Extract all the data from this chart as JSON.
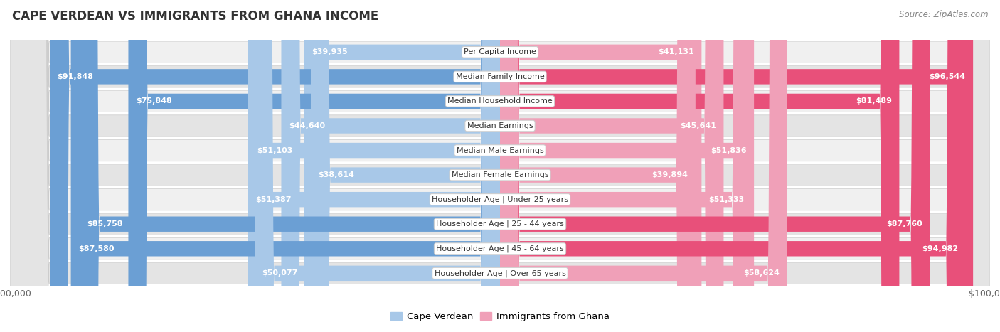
{
  "title": "CAPE VERDEAN VS IMMIGRANTS FROM GHANA INCOME",
  "source": "Source: ZipAtlas.com",
  "categories": [
    "Per Capita Income",
    "Median Family Income",
    "Median Household Income",
    "Median Earnings",
    "Median Male Earnings",
    "Median Female Earnings",
    "Householder Age | Under 25 years",
    "Householder Age | 25 - 44 years",
    "Householder Age | 45 - 64 years",
    "Householder Age | Over 65 years"
  ],
  "cape_verdean": [
    39935,
    91848,
    75848,
    44640,
    51103,
    38614,
    51387,
    85758,
    87580,
    50077
  ],
  "ghana": [
    41131,
    96544,
    81489,
    45641,
    51836,
    39894,
    51333,
    87760,
    94982,
    58624
  ],
  "max_value": 100000,
  "color_cv_large": "#6b9fd4",
  "color_cv_small": "#a8c8e8",
  "color_gh_large": "#e8507a",
  "color_gh_small": "#f0a0b8",
  "bg_row_odd": "#f0f0f0",
  "bg_row_even": "#e4e4e4",
  "label_inside_color": "#ffffff",
  "label_outside_color": "#555555",
  "bar_height": 0.62,
  "large_threshold": 60000,
  "inside_label_threshold": 20000,
  "legend_cape_verdean": "Cape Verdean",
  "legend_ghana": "Immigrants from Ghana"
}
